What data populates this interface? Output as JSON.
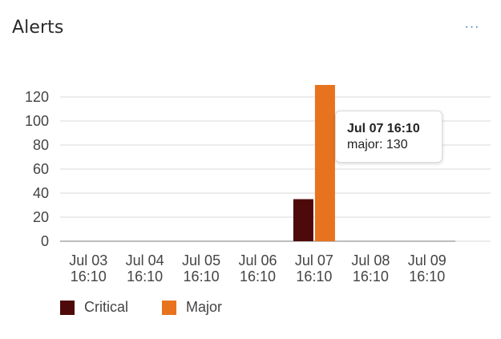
{
  "card": {
    "title": "Alerts",
    "more_label": "···"
  },
  "tooltip": {
    "title": "Jul 07 16:10",
    "body": "major: 130"
  },
  "colors": {
    "critical": "#4e0a0a",
    "major": "#e8731f",
    "grid": "#d9d9d9",
    "tick": "#444444"
  },
  "chart_data": {
    "type": "bar",
    "title": "",
    "xlabel": "",
    "ylabel": "",
    "ylim": [
      0,
      130
    ],
    "yticks": [
      0,
      20,
      40,
      60,
      80,
      100,
      120
    ],
    "categories": [
      [
        "Jul 03",
        "16:10"
      ],
      [
        "Jul 04",
        "16:10"
      ],
      [
        "Jul 05",
        "16:10"
      ],
      [
        "Jul 06",
        "16:10"
      ],
      [
        "Jul 07",
        "16:10"
      ],
      [
        "Jul 08",
        "16:10"
      ],
      [
        "Jul 09",
        "16:10"
      ]
    ],
    "series": [
      {
        "name": "Critical",
        "values": [
          0,
          0,
          0,
          0,
          35,
          0,
          0
        ]
      },
      {
        "name": "Major",
        "values": [
          0,
          0,
          0,
          0,
          130,
          0,
          0
        ]
      }
    ],
    "legend_position": "bottom-left",
    "grid": true
  }
}
